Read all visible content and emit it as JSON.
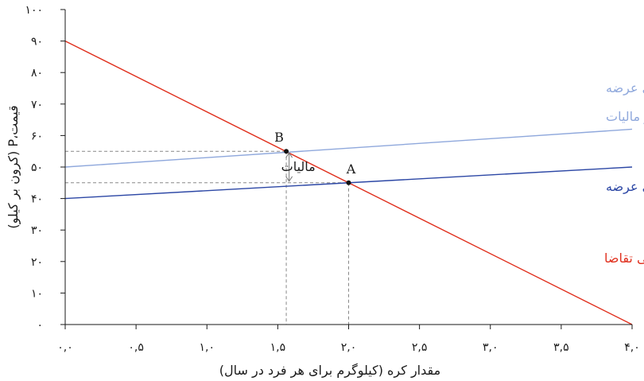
{
  "chart_data": {
    "type": "line",
    "xlabel": "مقدار کره (کیلوگرم برای هر فرد در سال)",
    "ylabel": "قیمت،P (کرون بر کیلو)",
    "xlim": [
      0,
      4
    ],
    "ylim": [
      0,
      100
    ],
    "x_ticks": [
      {
        "value": 0,
        "label": "۰,۰"
      },
      {
        "value": 0.5,
        "label": "۰,۵"
      },
      {
        "value": 1,
        "label": "۱,۰"
      },
      {
        "value": 1.5,
        "label": "۱,۵"
      },
      {
        "value": 2,
        "label": "۲,۰"
      },
      {
        "value": 2.5,
        "label": "۲,۵"
      },
      {
        "value": 3,
        "label": "۳,۰"
      },
      {
        "value": 3.5,
        "label": "۳,۵"
      },
      {
        "value": 4,
        "label": "۴,۰"
      }
    ],
    "y_ticks": [
      {
        "value": 0,
        "label": "۰"
      },
      {
        "value": 10,
        "label": "۱۰"
      },
      {
        "value": 20,
        "label": "۲۰"
      },
      {
        "value": 30,
        "label": "۳۰"
      },
      {
        "value": 40,
        "label": "۴۰"
      },
      {
        "value": 50,
        "label": "۵۰"
      },
      {
        "value": 60,
        "label": "۶۰"
      },
      {
        "value": 70,
        "label": "۷۰"
      },
      {
        "value": 80,
        "label": "۸۰"
      },
      {
        "value": 90,
        "label": "۹۰"
      },
      {
        "value": 100,
        "label": "۱۰۰"
      }
    ],
    "series": [
      {
        "key": "demand",
        "color": "#e0301e",
        "points": [
          [
            0,
            90
          ],
          [
            4,
            0
          ]
        ],
        "label_lines": [
          "منحنی تقاضا"
        ]
      },
      {
        "key": "supply",
        "color": "#2c47a5",
        "points": [
          [
            0,
            40
          ],
          [
            4,
            50
          ]
        ],
        "label_lines": [
          "منحنی عرضه"
        ]
      },
      {
        "key": "supply_tax",
        "color": "#8fa8dc",
        "points": [
          [
            0,
            50
          ],
          [
            4,
            62
          ]
        ],
        "label_lines": [
          "منحنی عرضه",
          "بعد از مالیات"
        ]
      }
    ],
    "points": [
      {
        "name": "A",
        "x": 2.0,
        "y": 45
      },
      {
        "name": "B",
        "x": 1.56,
        "y": 55
      }
    ],
    "annotation": {
      "label": "مالیات",
      "x": 1.58,
      "y_from": 45,
      "y_to": 55
    },
    "grid": false,
    "colors": {
      "axis": "#1a1a1a",
      "guide": "#888888",
      "point": "#111111"
    }
  }
}
